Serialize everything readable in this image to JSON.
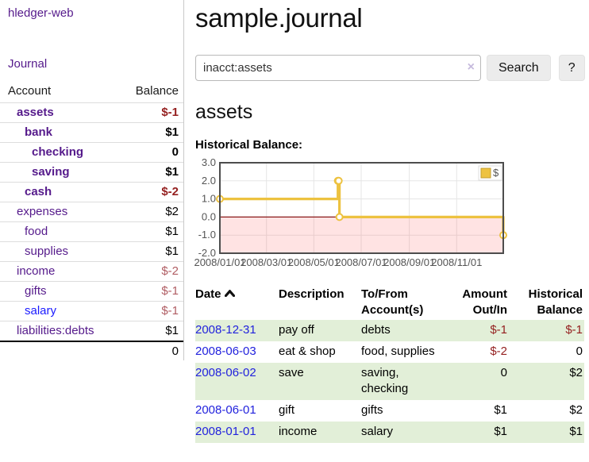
{
  "app": {
    "title": "hledger-web",
    "nav_journal": "Journal"
  },
  "sidebar": {
    "header": {
      "account": "Account",
      "balance": "Balance"
    },
    "accounts": [
      {
        "name": "assets",
        "indent": 1,
        "bold": true,
        "balance": "$-1",
        "tone": "strong-neg"
      },
      {
        "name": "bank",
        "indent": 2,
        "bold": true,
        "balance": "$1",
        "tone": null
      },
      {
        "name": "checking",
        "indent": 3,
        "bold": true,
        "balance": "0",
        "tone": null
      },
      {
        "name": "saving",
        "indent": 3,
        "bold": true,
        "balance": "$1",
        "tone": null
      },
      {
        "name": "cash",
        "indent": 2,
        "bold": true,
        "balance": "$-2",
        "tone": "strong-neg"
      },
      {
        "name": "expenses",
        "indent": 1,
        "bold": false,
        "balance": "$2",
        "tone": null
      },
      {
        "name": "food",
        "indent": 2,
        "bold": false,
        "balance": "$1",
        "tone": null
      },
      {
        "name": "supplies",
        "indent": 2,
        "bold": false,
        "balance": "$1",
        "tone": null
      },
      {
        "name": "income",
        "indent": 1,
        "bold": false,
        "balance": "$-2",
        "tone": "soft-neg"
      },
      {
        "name": "gifts",
        "indent": 2,
        "bold": false,
        "balance": "$-1",
        "tone": "soft-neg"
      },
      {
        "name": "salary",
        "indent": 2,
        "bold": false,
        "balance": "$-1",
        "tone": "soft-neg",
        "blue": true
      },
      {
        "name": "liabilities:debts",
        "indent": 1,
        "bold": false,
        "balance": "$1",
        "tone": null
      }
    ],
    "total": "0"
  },
  "header": {
    "title": "sample.journal"
  },
  "search": {
    "value": "inacct:assets",
    "clear_icon": "×",
    "button_label": "Search",
    "help_label": "?"
  },
  "main": {
    "account_title": "assets",
    "chart_label": "Historical Balance:"
  },
  "chart_data": {
    "type": "line",
    "title": "Historical Balance:",
    "x_range": [
      "2008-01-01",
      "2008-12-31"
    ],
    "ylim": [
      -2,
      3
    ],
    "y_ticks": [
      3,
      2,
      1,
      0,
      -1,
      -2
    ],
    "x_ticks": [
      "2008/01/01",
      "2008/03/01",
      "2008/05/01",
      "2008/07/01",
      "2008/09/01",
      "2008/11/01"
    ],
    "series": [
      {
        "name": "$",
        "color": "#edc240",
        "step": true,
        "points": [
          [
            "2008-01-01",
            1
          ],
          [
            "2008-06-01",
            2
          ],
          [
            "2008-06-02",
            2
          ],
          [
            "2008-06-03",
            0
          ],
          [
            "2008-12-31",
            -1
          ]
        ]
      }
    ],
    "legend": {
      "label": "$",
      "position": "top-right"
    },
    "grid": true,
    "negative_region_color": "rgba(255,90,90,0.17)",
    "zero_line_color": "#8b1a1a",
    "axis_text_color": "#545454",
    "border_color": "#4d4d4d"
  },
  "register": {
    "columns": [
      {
        "label": "Date",
        "align": "left",
        "sortable": true,
        "sort_icon": "caret-up"
      },
      {
        "label": "Description",
        "align": "left"
      },
      {
        "label": "To/From Account(s)",
        "align": "left"
      },
      {
        "label": "Amount Out/In",
        "align": "right"
      },
      {
        "label": "Historical Balance",
        "align": "right"
      }
    ],
    "rows": [
      {
        "date": "2008-12-31",
        "description": "pay off",
        "accounts": "debts",
        "amount": "$-1",
        "amount_neg": true,
        "balance": "$-1",
        "balance_neg": true,
        "shaded": true
      },
      {
        "date": "2008-06-03",
        "description": "eat & shop",
        "accounts": "food, supplies",
        "amount": "$-2",
        "amount_neg": true,
        "balance": "0",
        "balance_neg": false,
        "shaded": false
      },
      {
        "date": "2008-06-02",
        "description": "save",
        "accounts": "saving, checking",
        "amount": "0",
        "amount_neg": false,
        "balance": "$2",
        "balance_neg": false,
        "shaded": true
      },
      {
        "date": "2008-06-01",
        "description": "gift",
        "accounts": "gifts",
        "amount": "$1",
        "amount_neg": false,
        "balance": "$2",
        "balance_neg": false,
        "shaded": false
      },
      {
        "date": "2008-01-01",
        "description": "income",
        "accounts": "salary",
        "amount": "$1",
        "amount_neg": false,
        "balance": "$1",
        "balance_neg": false,
        "shaded": true
      }
    ]
  }
}
